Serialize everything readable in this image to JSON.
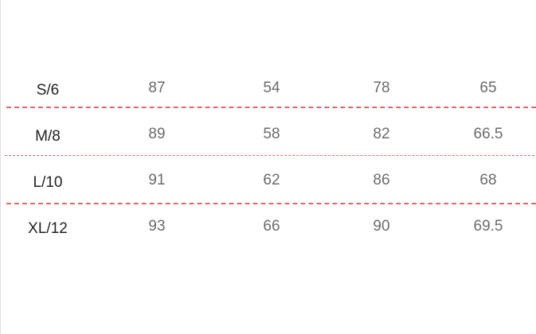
{
  "size_chart": {
    "rows": [
      {
        "size": "S/6",
        "values": [
          "87",
          "54",
          "78",
          "65"
        ]
      },
      {
        "size": "M/8",
        "values": [
          "89",
          "58",
          "82",
          "66.5"
        ]
      },
      {
        "size": "L/10",
        "values": [
          "91",
          "62",
          "86",
          "68"
        ]
      },
      {
        "size": "XL/12",
        "values": [
          "93",
          "66",
          "90",
          "69.5"
        ]
      }
    ]
  },
  "colors": {
    "divider": "#d86a6a",
    "size_text": "#222222",
    "value_text": "#6b6b6b"
  }
}
